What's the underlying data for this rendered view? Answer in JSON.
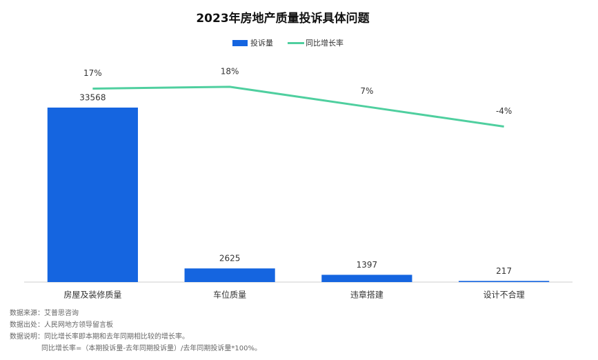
{
  "chart_data": {
    "type": "bar",
    "title": "2023年房地产质量投诉具体问题",
    "categories": [
      "房屋及装修质量",
      "车位质量",
      "违章搭建",
      "设计不合理"
    ],
    "series": [
      {
        "name": "投诉量",
        "type": "bar",
        "color": "#1565e0",
        "values": [
          33568,
          2625,
          1397,
          217
        ]
      },
      {
        "name": "同比增长率",
        "type": "line",
        "axis": "y2",
        "color": "#4fcf9f",
        "values": [
          17,
          18,
          7,
          -4
        ],
        "value_labels": [
          "17%",
          "18%",
          "7%",
          "-4%"
        ]
      }
    ],
    "ylim": [
      0,
      40000
    ],
    "y2lim": [
      -90,
      25
    ],
    "legend": "top",
    "notes": [
      "数据来源：艾普思咨询",
      "数据出处：人民网地方领导留言板",
      "数据说明：同比增长率即本期和去年同期相比较的增长率。",
      "同比增长率=（本期投诉量-去年同期投诉量）/去年同期投诉量*100%。"
    ]
  }
}
